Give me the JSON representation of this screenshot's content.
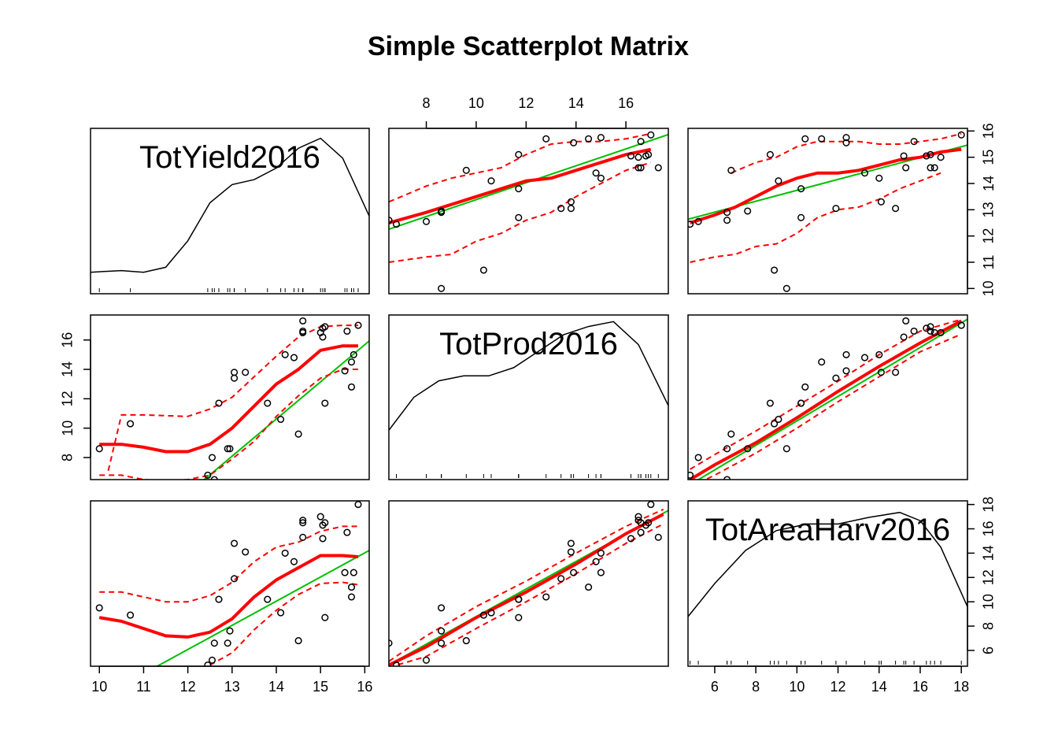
{
  "chart_data": {
    "type": "scatter",
    "title": "Simple Scatterplot Matrix",
    "variables": [
      "TotYield2016",
      "TotProd2016",
      "TotAreaHarv2016"
    ],
    "colors": {
      "points": "#000000",
      "fit_line": "#00c000",
      "smooth_line": "#ff0000",
      "density": "#000000"
    },
    "axes": {
      "TotYield2016": {
        "range": [
          9.8,
          16.1
        ],
        "ticks": [
          "10",
          "11",
          "12",
          "13",
          "14",
          "15",
          "16"
        ],
        "tick_values": [
          10,
          11,
          12,
          13,
          14,
          15,
          16
        ]
      },
      "TotProd2016": {
        "range": [
          6.5,
          17.7
        ],
        "ticks": [
          "8",
          "10",
          "12",
          "14",
          "16"
        ],
        "tick_values": [
          8,
          10,
          12,
          14,
          16
        ]
      },
      "TotAreaHarv2016": {
        "range": [
          4.7,
          18.3
        ],
        "ticks": [
          "6",
          "8",
          "10",
          "12",
          "14",
          "16",
          "18"
        ],
        "tick_values": [
          6,
          8,
          10,
          12,
          14,
          16,
          18
        ]
      }
    },
    "observations": {
      "TotYield2016": [
        10.0,
        10.7,
        12.45,
        12.55,
        12.6,
        12.7,
        12.9,
        12.95,
        13.05,
        13.05,
        13.3,
        13.8,
        14.1,
        14.2,
        14.4,
        14.5,
        14.6,
        14.6,
        14.6,
        15.0,
        15.05,
        15.05,
        15.1,
        15.1,
        15.55,
        15.6,
        15.7,
        15.7,
        15.75,
        15.85
      ],
      "TotProd2016": [
        8.6,
        10.3,
        6.8,
        8.0,
        6.5,
        11.7,
        8.6,
        8.6,
        13.4,
        13.8,
        13.8,
        11.7,
        10.6,
        15.0,
        14.8,
        9.6,
        16.5,
        17.3,
        16.6,
        16.5,
        16.8,
        16.2,
        11.7,
        16.9,
        13.9,
        16.6,
        12.8,
        14.5,
        15.0,
        17.0
      ],
      "TotAreaHarv2016": [
        9.5,
        8.9,
        4.8,
        5.2,
        6.6,
        10.2,
        6.6,
        7.6,
        11.9,
        14.8,
        14.1,
        10.2,
        9.1,
        14.0,
        13.3,
        6.8,
        16.7,
        15.3,
        16.5,
        17.0,
        16.3,
        15.2,
        8.7,
        16.5,
        12.4,
        15.7,
        10.4,
        11.2,
        12.4,
        18.0
      ]
    },
    "linear_fits": [
      {
        "y": "TotYield2016",
        "x": "TotProd2016",
        "intercept": 10.16,
        "slope": 0.3224
      },
      {
        "y": "TotYield2016",
        "x": "TotAreaHarv2016",
        "intercept": 11.66,
        "slope": 0.2078
      },
      {
        "y": "TotProd2016",
        "x": "TotYield2016",
        "intercept": -24.79,
        "slope": 2.5294
      },
      {
        "y": "TotProd2016",
        "x": "TotAreaHarv2016",
        "intercept": 2.16,
        "slope": 0.8333
      },
      {
        "y": "TotAreaHarv2016",
        "x": "TotYield2016",
        "intercept": -17.75,
        "slope": 1.9857
      },
      {
        "y": "TotAreaHarv2016",
        "x": "TotProd2016",
        "intercept": -2.55,
        "slope": 1.1333
      }
    ],
    "smoothers": [
      {
        "y": "TotYield2016",
        "x": "TotProd2016",
        "fit": [
          [
            6.5,
            12.5
          ],
          [
            8,
            12.9
          ],
          [
            10,
            13.5
          ],
          [
            11,
            13.8
          ],
          [
            12,
            14.1
          ],
          [
            13,
            14.2
          ],
          [
            14,
            14.5
          ],
          [
            15,
            14.8
          ],
          [
            16,
            15.1
          ],
          [
            17,
            15.3
          ]
        ],
        "upper": [
          [
            6.5,
            13.3
          ],
          [
            8,
            13.9
          ],
          [
            9,
            14.2
          ],
          [
            10,
            14.4
          ],
          [
            11,
            14.6
          ],
          [
            12,
            15.1
          ],
          [
            13,
            15.5
          ],
          [
            14,
            15.6
          ],
          [
            15,
            15.6
          ],
          [
            16,
            15.7
          ],
          [
            17,
            15.9
          ]
        ],
        "lower": [
          [
            6.5,
            11.0
          ],
          [
            8,
            11.2
          ],
          [
            9,
            11.3
          ],
          [
            10,
            11.8
          ],
          [
            11,
            12.1
          ],
          [
            12,
            12.6
          ],
          [
            13,
            12.9
          ],
          [
            14,
            13.5
          ],
          [
            15,
            14.0
          ],
          [
            16,
            14.5
          ],
          [
            17,
            14.8
          ]
        ]
      },
      {
        "y": "TotYield2016",
        "x": "TotAreaHarv2016",
        "fit": [
          [
            4.8,
            12.5
          ],
          [
            6,
            12.8
          ],
          [
            7,
            13.1
          ],
          [
            8,
            13.5
          ],
          [
            9,
            13.9
          ],
          [
            10,
            14.2
          ],
          [
            11,
            14.4
          ],
          [
            12,
            14.4
          ],
          [
            13,
            14.5
          ],
          [
            14,
            14.7
          ],
          [
            15,
            14.9
          ],
          [
            16,
            15.0
          ],
          [
            17,
            15.2
          ],
          [
            18,
            15.3
          ]
        ],
        "upper": [
          [
            6.8,
            14.4
          ],
          [
            8,
            14.8
          ],
          [
            9,
            15.0
          ],
          [
            10,
            15.4
          ],
          [
            11,
            15.6
          ],
          [
            12,
            15.6
          ],
          [
            13,
            15.6
          ],
          [
            14,
            15.5
          ],
          [
            15,
            15.5
          ],
          [
            16,
            15.6
          ],
          [
            17,
            15.7
          ],
          [
            18,
            15.9
          ]
        ],
        "lower": [
          [
            4.8,
            11.0
          ],
          [
            6,
            11.2
          ],
          [
            7,
            11.3
          ],
          [
            8,
            11.6
          ],
          [
            9,
            11.7
          ],
          [
            10,
            12.1
          ],
          [
            11,
            12.7
          ],
          [
            12,
            13.0
          ],
          [
            13,
            13.1
          ],
          [
            14,
            13.4
          ],
          [
            15,
            13.8
          ],
          [
            16,
            14.1
          ],
          [
            17,
            14.4
          ]
        ]
      },
      {
        "y": "TotProd2016",
        "x": "TotYield2016",
        "fit": [
          [
            10,
            8.9
          ],
          [
            10.5,
            8.9
          ],
          [
            11,
            8.7
          ],
          [
            11.5,
            8.4
          ],
          [
            12,
            8.4
          ],
          [
            12.5,
            8.9
          ],
          [
            13,
            10.0
          ],
          [
            13.5,
            11.5
          ],
          [
            14,
            13.0
          ],
          [
            14.5,
            14.0
          ],
          [
            15,
            15.3
          ],
          [
            15.5,
            15.6
          ],
          [
            15.85,
            15.6
          ]
        ],
        "upper": [
          [
            10.2,
            7.1
          ],
          [
            10.5,
            10.9
          ],
          [
            11,
            10.9
          ],
          [
            12,
            10.8
          ],
          [
            12.5,
            11.3
          ],
          [
            13,
            12.1
          ],
          [
            13.5,
            13.5
          ],
          [
            14,
            14.9
          ],
          [
            14.5,
            16.2
          ],
          [
            15,
            16.9
          ],
          [
            15.5,
            17.0
          ],
          [
            15.85,
            17.0
          ]
        ],
        "lower": [
          [
            10,
            6.8
          ],
          [
            10.5,
            6.8
          ],
          [
            11,
            6.5
          ],
          [
            11.5,
            6.4
          ],
          [
            12,
            6.5
          ],
          [
            12.5,
            6.8
          ],
          [
            13,
            7.9
          ],
          [
            13.5,
            9.1
          ],
          [
            14,
            10.8
          ],
          [
            14.5,
            12.2
          ],
          [
            15,
            13.4
          ],
          [
            15.5,
            14.0
          ],
          [
            15.85,
            14.0
          ]
        ]
      },
      {
        "y": "TotProd2016",
        "x": "TotAreaHarv2016",
        "fit": [
          [
            4.8,
            6.5
          ],
          [
            6,
            7.5
          ],
          [
            8,
            9.0
          ],
          [
            10,
            10.7
          ],
          [
            12,
            12.5
          ],
          [
            14,
            14.2
          ],
          [
            16,
            15.8
          ],
          [
            18,
            17.3
          ]
        ],
        "upper": [
          [
            4.8,
            7.2
          ],
          [
            6,
            8.2
          ],
          [
            8,
            9.8
          ],
          [
            10,
            11.5
          ],
          [
            12,
            13.2
          ],
          [
            14,
            15.0
          ],
          [
            16,
            16.6
          ],
          [
            18,
            17.4
          ]
        ],
        "lower": [
          [
            4.8,
            6.0
          ],
          [
            6,
            6.8
          ],
          [
            8,
            8.3
          ],
          [
            10,
            10.0
          ],
          [
            12,
            11.8
          ],
          [
            14,
            13.5
          ],
          [
            16,
            15.2
          ],
          [
            18,
            16.4
          ]
        ]
      },
      {
        "y": "TotAreaHarv2016",
        "x": "TotYield2016",
        "fit": [
          [
            10,
            8.7
          ],
          [
            10.5,
            8.4
          ],
          [
            11,
            7.8
          ],
          [
            11.5,
            7.2
          ],
          [
            12,
            7.1
          ],
          [
            12.5,
            7.5
          ],
          [
            13,
            8.6
          ],
          [
            13.5,
            10.4
          ],
          [
            14,
            11.8
          ],
          [
            14.5,
            12.8
          ],
          [
            15,
            13.8
          ],
          [
            15.5,
            13.8
          ],
          [
            15.85,
            13.7
          ]
        ],
        "upper": [
          [
            10,
            10.8
          ],
          [
            10.5,
            10.8
          ],
          [
            11,
            10.4
          ],
          [
            11.5,
            10.0
          ],
          [
            12,
            10.0
          ],
          [
            12.5,
            10.5
          ],
          [
            13,
            11.6
          ],
          [
            13.5,
            13.3
          ],
          [
            14,
            14.5
          ],
          [
            14.5,
            14.9
          ],
          [
            15,
            15.8
          ],
          [
            15.5,
            16.2
          ],
          [
            15.85,
            16.2
          ]
        ],
        "lower": [
          [
            12.5,
            4.8
          ],
          [
            13,
            5.8
          ],
          [
            13.5,
            7.7
          ],
          [
            14,
            9.3
          ],
          [
            14.5,
            10.6
          ],
          [
            15,
            11.5
          ],
          [
            15.5,
            11.6
          ],
          [
            15.85,
            11.4
          ]
        ]
      },
      {
        "y": "TotAreaHarv2016",
        "x": "TotProd2016",
        "fit": [
          [
            6.5,
            4.8
          ],
          [
            8,
            6.3
          ],
          [
            10,
            8.7
          ],
          [
            12,
            10.8
          ],
          [
            14,
            13.1
          ],
          [
            16,
            15.6
          ],
          [
            17.5,
            17.2
          ]
        ],
        "upper": [
          [
            6.5,
            5.1
          ],
          [
            8,
            7.2
          ],
          [
            10,
            9.6
          ],
          [
            12,
            11.7
          ],
          [
            14,
            14.0
          ],
          [
            16,
            16.2
          ],
          [
            17.5,
            17.6
          ]
        ],
        "lower": [
          [
            6.5,
            4.6
          ],
          [
            8,
            5.5
          ],
          [
            10,
            7.8
          ],
          [
            12,
            10.0
          ],
          [
            14,
            12.3
          ],
          [
            16,
            14.8
          ],
          [
            17.5,
            16.4
          ]
        ]
      }
    ],
    "densities": {
      "TotYield2016": [
        [
          9.8,
          0.13
        ],
        [
          10.5,
          0.14
        ],
        [
          11,
          0.13
        ],
        [
          11.5,
          0.16
        ],
        [
          12,
          0.32
        ],
        [
          12.5,
          0.55
        ],
        [
          13,
          0.66
        ],
        [
          13.5,
          0.69
        ],
        [
          14,
          0.76
        ],
        [
          14.5,
          0.88
        ],
        [
          15,
          0.94
        ],
        [
          15.5,
          0.82
        ],
        [
          16.1,
          0.47
        ]
      ],
      "TotProd2016": [
        [
          6.5,
          0.3
        ],
        [
          7.5,
          0.5
        ],
        [
          8.5,
          0.6
        ],
        [
          9.5,
          0.63
        ],
        [
          10.5,
          0.63
        ],
        [
          11.5,
          0.68
        ],
        [
          12.5,
          0.78
        ],
        [
          13.5,
          0.88
        ],
        [
          14.5,
          0.93
        ],
        [
          15.5,
          0.96
        ],
        [
          16.5,
          0.82
        ],
        [
          17.7,
          0.45
        ]
      ],
      "TotAreaHarv2016": [
        [
          4.7,
          0.3
        ],
        [
          6,
          0.5
        ],
        [
          7.5,
          0.7
        ],
        [
          9,
          0.82
        ],
        [
          10.5,
          0.86
        ],
        [
          12,
          0.86
        ],
        [
          13.5,
          0.9
        ],
        [
          15,
          0.93
        ],
        [
          16,
          0.88
        ],
        [
          17,
          0.72
        ],
        [
          18.3,
          0.36
        ]
      ]
    }
  }
}
